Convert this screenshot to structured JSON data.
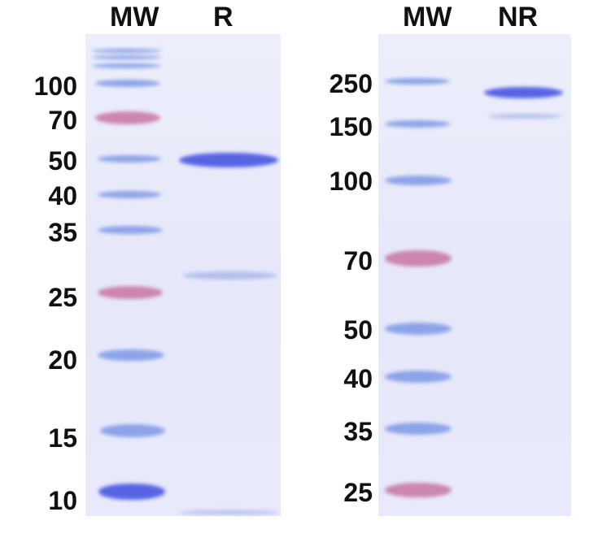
{
  "gel_left": {
    "lanes": [
      "MW",
      "R"
    ],
    "markers": [
      "100",
      "70",
      "50",
      "40",
      "35",
      "25",
      "20",
      "15",
      "10"
    ]
  },
  "gel_right": {
    "lanes": [
      "MW",
      "NR"
    ],
    "markers": [
      "250",
      "150",
      "100",
      "70",
      "50",
      "40",
      "35",
      "25"
    ]
  },
  "colors": {
    "marker_blue": "#6e8ce1",
    "marker_pink": "#c36496",
    "sample_band": "#4655e1",
    "gel_background": "#e8e9fb"
  }
}
